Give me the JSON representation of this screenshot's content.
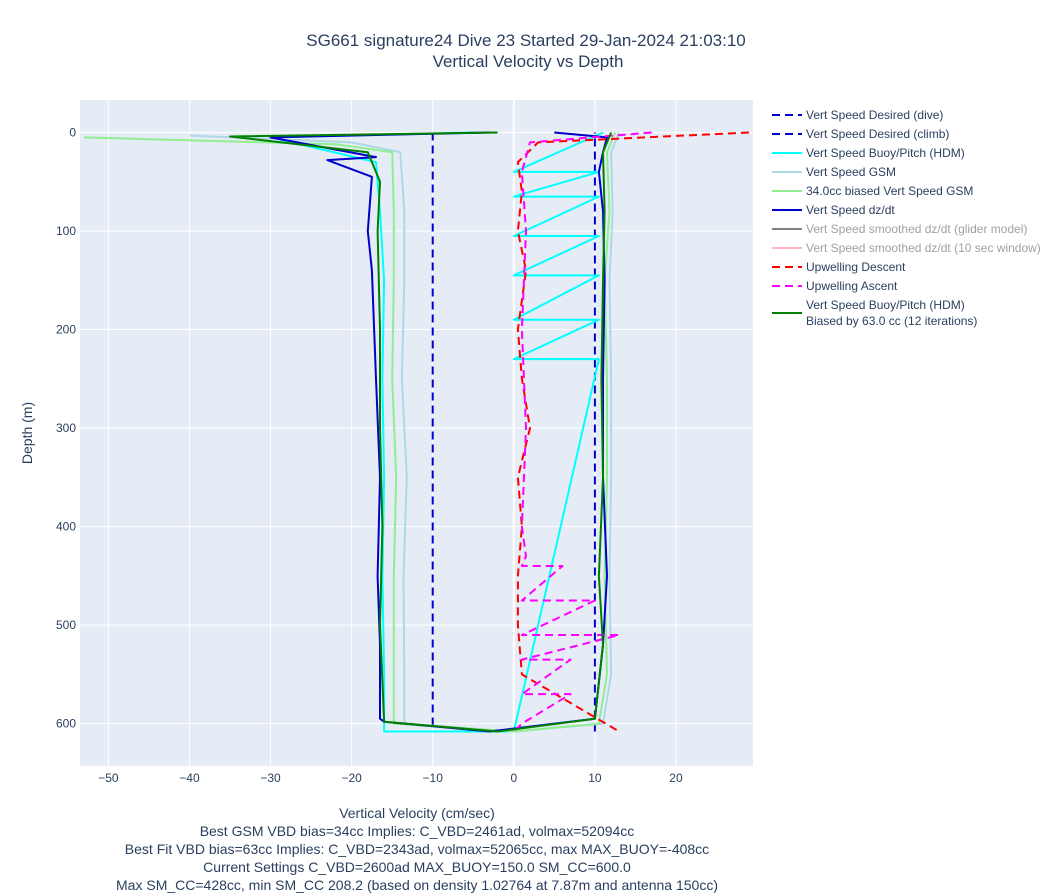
{
  "chart_data": {
    "type": "line",
    "title": "SG661 signature24 Dive 23 Started 29-Jan-2024 21:03:10",
    "subtitle": "Vertical Velocity vs Depth",
    "xlabel": "Vertical Velocity (cm/sec)",
    "ylabel": "Depth (m)",
    "xlim": [
      -53.5,
      29.5
    ],
    "ylim": [
      643,
      -33
    ],
    "y_reversed": true,
    "grid": true,
    "legend_position": "right",
    "x_ticks": [
      -50,
      -40,
      -30,
      -20,
      -10,
      0,
      10,
      20
    ],
    "x_tick_labels": [
      "−50",
      "−40",
      "−30",
      "−20",
      "−10",
      "0",
      "10",
      "20"
    ],
    "y_ticks": [
      0,
      100,
      200,
      300,
      400,
      500,
      600
    ],
    "y_tick_labels": [
      "0",
      "100",
      "200",
      "300",
      "400",
      "500",
      "600"
    ],
    "captions": [
      "Best GSM VBD bias=34cc Implies: C_VBD=2461ad, volmax=52094cc",
      "Best Fit VBD bias=63cc Implies: C_VBD=2343ad, volmax=52065cc, max MAX_BUOY=-408cc",
      "Current Settings C_VBD=2600ad MAX_BUOY=150.0 SM_CC=600.0",
      "Max SM_CC=428cc, min SM_CC 208.2 (based on density 1.02764 at 7.87m and antenna 150cc)"
    ],
    "series": [
      {
        "name": "Vert Speed Desired (dive)",
        "color": "#0000cd",
        "dash": "dash",
        "dim": false,
        "x": [
          -10,
          -10
        ],
        "y": [
          0,
          608
        ]
      },
      {
        "name": "Vert Speed Desired (climb)",
        "color": "#0000cd",
        "dash": "dash",
        "dim": false,
        "x": [
          10,
          10
        ],
        "y": [
          608,
          0
        ]
      },
      {
        "name": "Vert Speed Buoy/Pitch (HDM)",
        "color": "#00ffff",
        "dash": "solid",
        "dim": false,
        "x": [
          -5,
          -30,
          -17,
          -16.5,
          -16,
          -16.2,
          -16,
          -16.2,
          -16,
          -16,
          -16,
          0,
          10.5,
          0,
          10.5,
          0,
          10.5,
          0,
          10.5,
          0,
          10.5,
          0,
          10.5,
          0,
          11
        ],
        "y": [
          0,
          5,
          30,
          80,
          150,
          250,
          350,
          450,
          550,
          600,
          608,
          608,
          230,
          230,
          190,
          190,
          145,
          145,
          105,
          105,
          65,
          65,
          40,
          40,
          0
        ]
      },
      {
        "name": "Vert Speed GSM",
        "color": "#add8e6",
        "dash": "solid",
        "dim": false,
        "x": [
          -40,
          -20,
          -14,
          -13.5,
          -13.5,
          -13.8,
          -13.2,
          -13.6,
          -13.5,
          -13.5,
          0,
          11,
          12,
          11.8,
          12,
          12,
          11.8,
          12.2,
          12,
          13
        ],
        "y": [
          3,
          10,
          20,
          80,
          150,
          250,
          350,
          450,
          550,
          600,
          608,
          600,
          550,
          450,
          350,
          250,
          150,
          80,
          20,
          0
        ]
      },
      {
        "name": "34.0cc biased Vert Speed GSM",
        "color": "#90ee90",
        "dash": "solid",
        "dim": false,
        "x": [
          -53,
          -22,
          -15,
          -14.8,
          -14.8,
          -15,
          -14.5,
          -14.8,
          -14.8,
          -14.8,
          0,
          10.5,
          11.5,
          11.2,
          11.5,
          11.5,
          11.2,
          11.8,
          11.5,
          12.5
        ],
        "y": [
          5,
          12,
          20,
          80,
          150,
          250,
          350,
          450,
          550,
          600,
          608,
          600,
          550,
          450,
          350,
          250,
          150,
          80,
          20,
          0
        ]
      },
      {
        "name": "Vert Speed dz/dt",
        "color": "#0000cd",
        "dash": "solid",
        "dim": false,
        "x": [
          -3,
          -30,
          -17,
          -23,
          -17.5,
          -18,
          -17.5,
          -17,
          -16.5,
          -16.8,
          -16.5,
          -16.5,
          -16.5,
          -16,
          -3,
          10,
          11,
          11.5,
          11,
          11,
          11.2,
          11,
          10.5,
          11,
          11.5,
          5
        ],
        "y": [
          0,
          5,
          25,
          28,
          45,
          100,
          140,
          250,
          350,
          450,
          520,
          560,
          595,
          598,
          608,
          595,
          520,
          450,
          350,
          250,
          150,
          80,
          40,
          20,
          5,
          0
        ]
      },
      {
        "name": "Vert Speed smoothed dz/dt (glider model)",
        "color": "#808080",
        "dash": "solid",
        "dim": true,
        "x": [],
        "y": []
      },
      {
        "name": "Vert Speed smoothed dz/dt (10 sec window)",
        "color": "#ffb6c1",
        "dash": "solid",
        "dim": true,
        "x": [],
        "y": []
      },
      {
        "name": "Upwelling Descent",
        "color": "#ff0000",
        "dash": "dash",
        "dim": false,
        "x": [
          29,
          3,
          0.5,
          1,
          0.5,
          1.5,
          0.5,
          1,
          2,
          0.5,
          1,
          0.5,
          0.5,
          1,
          13
        ],
        "y": [
          0,
          10,
          30,
          60,
          100,
          140,
          200,
          250,
          300,
          350,
          400,
          450,
          500,
          550,
          608
        ]
      },
      {
        "name": "Upwelling Ascent",
        "color": "#ff00ff",
        "dash": "dash",
        "dim": false,
        "x": [
          17,
          2,
          1,
          1.5,
          1,
          1.5,
          1,
          1.5,
          1,
          6,
          1,
          10,
          1,
          13,
          1,
          7,
          1,
          7,
          1,
          0
        ],
        "y": [
          0,
          10,
          40,
          100,
          200,
          300,
          400,
          430,
          440,
          440,
          475,
          475,
          510,
          510,
          535,
          535,
          570,
          570,
          600,
          608
        ]
      },
      {
        "name": "Vert Speed Buoy/Pitch (HDM)",
        "name2": "Biased by 63.0 cc (12 iterations)",
        "color": "#008000",
        "dash": "solid",
        "dim": false,
        "x": [
          -2,
          -35,
          -18,
          -16.5,
          -16.8,
          -16.5,
          -16.5,
          -16.2,
          -16.5,
          -16,
          -2,
          10,
          11,
          10.5,
          11,
          10.8,
          11,
          11.2,
          11,
          12
        ],
        "y": [
          0,
          4,
          20,
          50,
          100,
          200,
          300,
          400,
          500,
          598,
          608,
          595,
          520,
          450,
          350,
          250,
          150,
          80,
          20,
          0
        ]
      }
    ]
  }
}
